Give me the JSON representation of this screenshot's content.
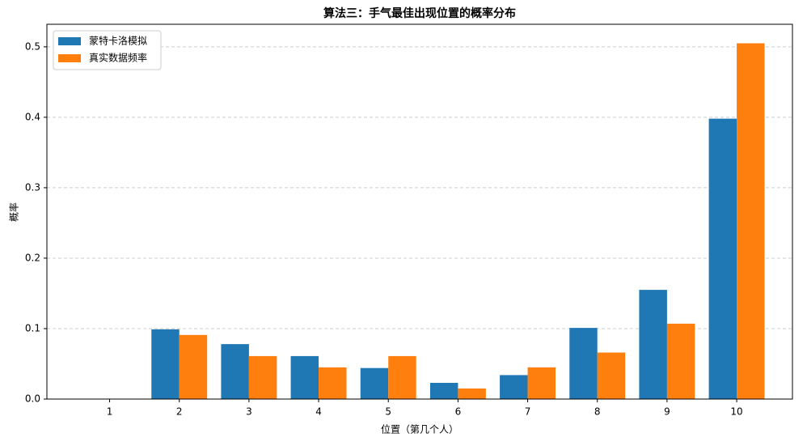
{
  "chart_data": {
    "type": "bar",
    "title": "算法三：手气最佳出现位置的概率分布",
    "x_label": "位置（第几个人）",
    "y_label": "概率",
    "categories": [
      "1",
      "2",
      "3",
      "4",
      "5",
      "6",
      "7",
      "8",
      "9",
      "10"
    ],
    "series": [
      {
        "name": "蒙特卡洛模拟",
        "color": "#1f77b4",
        "values": [
          0,
          0.099,
          0.078,
          0.061,
          0.044,
          0.023,
          0.034,
          0.101,
          0.155,
          0.398
        ]
      },
      {
        "name": "真实数据频率",
        "color": "#ff7f0e",
        "values": [
          0,
          0.091,
          0.061,
          0.045,
          0.061,
          0.015,
          0.045,
          0.066,
          0.107,
          0.505
        ]
      }
    ],
    "ylim": [
      0,
      0.532
    ],
    "yticks": [
      {
        "value": 0,
        "label": "0.0"
      },
      0.1,
      0.2,
      0.3,
      0.4,
      0.5
    ],
    "grid": true,
    "legend": "upper-left"
  }
}
